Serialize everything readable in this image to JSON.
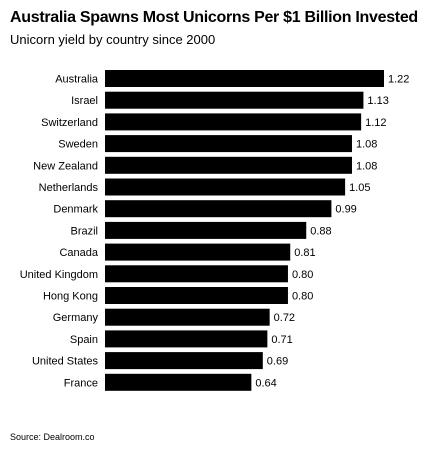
{
  "header": {
    "title": "Australia Spawns Most Unicorns Per $1 Billion Invested",
    "subtitle": "Unicorn yield by country since 2000"
  },
  "footer": {
    "source": "Source: Dealroom.co"
  },
  "colors": {
    "bar": "#000000",
    "text": "#000000",
    "background": "#ffffff"
  },
  "chart_data": {
    "type": "bar",
    "orientation": "horizontal",
    "title": "Australia Spawns Most Unicorns Per $1 Billion Invested",
    "subtitle": "Unicorn yield by country since 2000",
    "xlabel": "",
    "ylabel": "",
    "categories": [
      "Australia",
      "Israel",
      "Switzerland",
      "Sweden",
      "New Zealand",
      "Netherlands",
      "Denmark",
      "Brazil",
      "Canada",
      "United Kingdom",
      "Hong Kong",
      "Germany",
      "Spain",
      "United States",
      "France"
    ],
    "values": [
      1.22,
      1.13,
      1.12,
      1.08,
      1.08,
      1.05,
      0.99,
      0.88,
      0.81,
      0.8,
      0.8,
      0.72,
      0.71,
      0.69,
      0.64
    ],
    "value_labels": [
      "1.22",
      "1.13",
      "1.12",
      "1.08",
      "1.08",
      "1.05",
      "0.99",
      "0.88",
      "0.81",
      "0.80",
      "0.80",
      "0.72",
      "0.71",
      "0.69",
      "0.64"
    ],
    "xlim": [
      0,
      1.22
    ],
    "grid": false,
    "legend": "none"
  }
}
